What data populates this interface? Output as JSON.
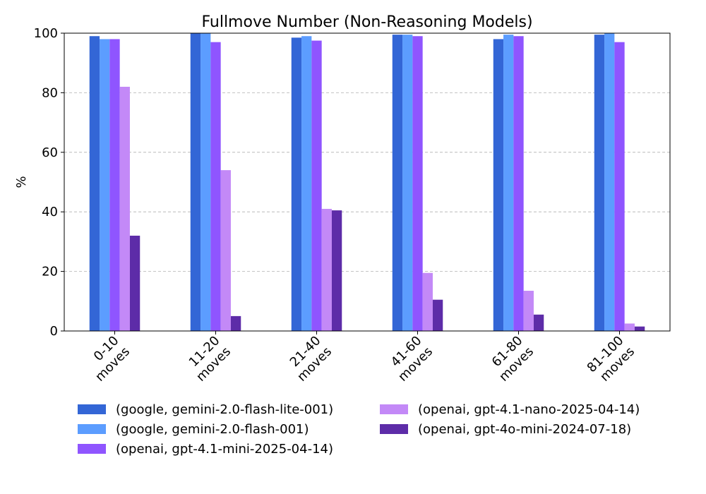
{
  "chart_data": {
    "type": "bar",
    "title": "Fullmove Number (Non-Reasoning Models)",
    "xlabel": "",
    "ylabel": "%",
    "ylim": [
      0,
      100
    ],
    "yticks": [
      0,
      20,
      40,
      60,
      80,
      100
    ],
    "grid": true,
    "legend_placement": "bottom",
    "categories": [
      "0-10\nmoves",
      "11-20\nmoves",
      "21-40\nmoves",
      "41-60\nmoves",
      "61-80\nmoves",
      "81-100\nmoves"
    ],
    "series": [
      {
        "name": "(google, gemini-2.0-flash-lite-001)",
        "color": "#3366d6",
        "values": [
          99,
          100,
          98.5,
          99.5,
          98,
          99.5
        ]
      },
      {
        "name": "(google, gemini-2.0-flash-001)",
        "color": "#5c9dff",
        "values": [
          98,
          100,
          99,
          99.5,
          99.5,
          100
        ]
      },
      {
        "name": "(openai, gpt-4.1-mini-2025-04-14)",
        "color": "#8f55ff",
        "values": [
          98,
          97,
          97.5,
          99,
          99,
          97
        ]
      },
      {
        "name": "(openai, gpt-4.1-nano-2025-04-14)",
        "color": "#c389f7",
        "values": [
          82,
          54,
          41,
          19.5,
          13.5,
          2.5
        ]
      },
      {
        "name": "(openai, gpt-4o-mini-2024-07-18)",
        "color": "#5d2ca8",
        "values": [
          32,
          5,
          40.5,
          10.5,
          5.5,
          1.5
        ]
      }
    ]
  }
}
